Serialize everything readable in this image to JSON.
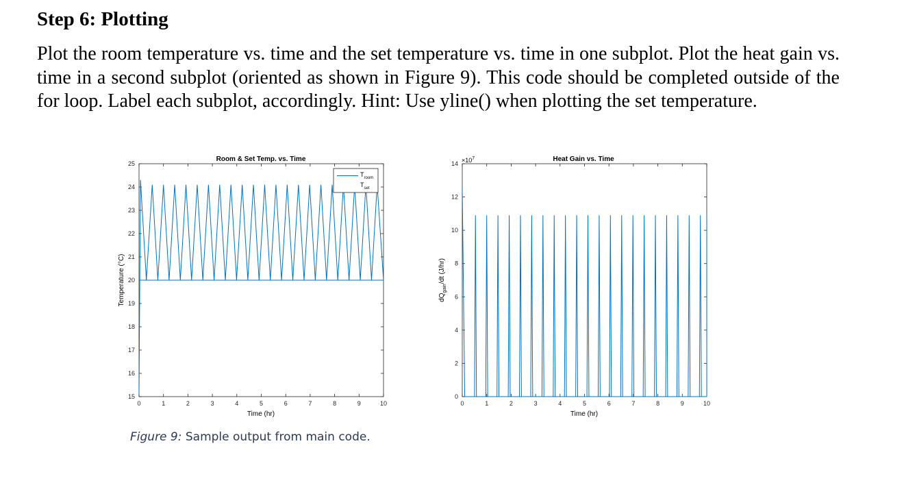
{
  "heading": "Step 6: Plotting",
  "paragraph": "Plot the room temperature vs. time and the set temperature vs. time in one subplot. Plot the heat gain vs. time in a second subplot (oriented as shown in Figure 9). This code should be completed outside of the for loop. Label each subplot, accordingly. Hint: Use yline() when plotting the set temperature.",
  "caption": {
    "label": "Figure 9:",
    "text": " Sample output from main code."
  },
  "line_color": "#0072BD",
  "chart_data": [
    {
      "type": "line",
      "title": "Room & Set Temp. vs. Time",
      "xlabel": "Time (hr)",
      "ylabel": "Temperature (°C)",
      "xlim": [
        0,
        10
      ],
      "ylim": [
        15,
        25
      ],
      "xticks": [
        0,
        1,
        2,
        3,
        4,
        5,
        6,
        7,
        8,
        9,
        10
      ],
      "yticks": [
        15,
        16,
        17,
        18,
        19,
        20,
        21,
        22,
        23,
        24,
        25
      ],
      "legend": {
        "placement": "top-right",
        "entries": [
          {
            "base": "T",
            "sub": "room"
          },
          {
            "base": "T",
            "sub": "set"
          }
        ]
      },
      "series": [
        {
          "name": "T_room",
          "peak_times": [
            0.06,
            0.54,
            1.0,
            1.46,
            1.92,
            2.38,
            2.84,
            3.3,
            3.76,
            4.22,
            4.68,
            5.14,
            5.6,
            6.06,
            6.52,
            6.98,
            7.44,
            7.9,
            8.36,
            8.82,
            9.28,
            9.74
          ],
          "first_peak": 24.3,
          "peak_value": 24.1,
          "trough_value": 20.0,
          "start": [
            0,
            15.1
          ],
          "end": [
            10,
            20.0
          ]
        }
      ]
    },
    {
      "type": "line",
      "title": "Heat Gain vs. Time",
      "xlabel": "Time (hr)",
      "ylabel": "dQ_gain/dt (J/hr)",
      "exponent": "×10",
      "exponent_power": "7",
      "xlim": [
        0,
        10
      ],
      "ylim": [
        0,
        14
      ],
      "xticks": [
        0,
        1,
        2,
        3,
        4,
        5,
        6,
        7,
        8,
        9,
        10
      ],
      "yticks": [
        0,
        2,
        4,
        6,
        8,
        10,
        12,
        14
      ],
      "series": [
        {
          "name": "dQ_gain/dt",
          "pulse_times": [
            0.06,
            0.54,
            1.0,
            1.46,
            1.92,
            2.38,
            2.84,
            3.3,
            3.76,
            4.22,
            4.68,
            5.14,
            5.6,
            6.06,
            6.52,
            6.98,
            7.44,
            7.9,
            8.36,
            8.82,
            9.28,
            9.74
          ],
          "first_value": 12.5,
          "pulse_value": 10.9,
          "pulse_width_hr": 0.04
        }
      ]
    }
  ]
}
